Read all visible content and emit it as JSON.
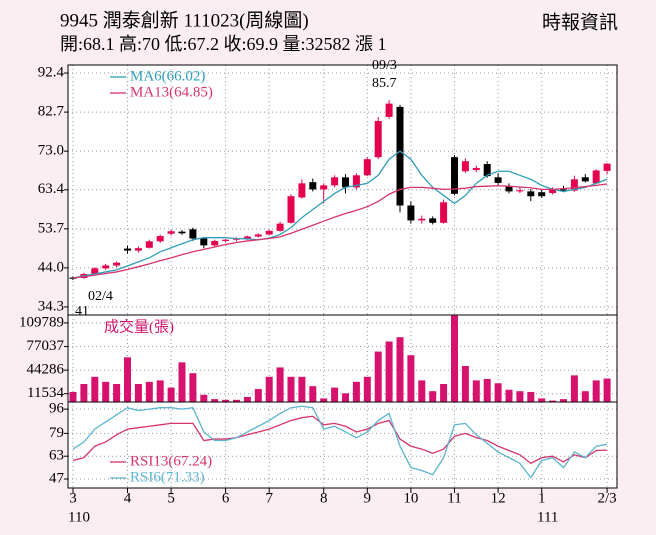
{
  "chart_data": [
    {
      "type": "candlestick",
      "title": "9945  潤泰創新 111023(周線圖)",
      "subtitle": "開:68.1 高:70 低:67.2 收:69.9 量:32582 漲 1",
      "source": "時報資訊",
      "up_color": "#e5004f",
      "down_color": "#000000",
      "open": [
        41.6,
        41.5,
        42.5,
        43.9,
        44.6,
        48.8,
        48.3,
        49,
        50.6,
        52.5,
        53,
        53.6,
        51.3,
        49.6,
        50.7,
        51,
        51.3,
        51.8,
        52.3,
        53.2,
        55.2,
        61.5,
        65.3,
        63.5,
        64.5,
        66.5,
        64,
        67,
        71.5,
        81.5,
        84,
        59.5,
        55.8,
        56.3,
        55.2,
        71.5,
        68,
        68.3,
        69.8,
        66.5,
        64.2,
        63,
        63,
        62.8,
        62.6,
        63.5,
        63.2,
        66.5,
        65,
        68.1
      ],
      "high": [
        41.9,
        42.8,
        44.2,
        45,
        45.6,
        49.5,
        49.3,
        51,
        52.3,
        53.5,
        53.4,
        54,
        51.5,
        51,
        51.2,
        51.6,
        52,
        52.6,
        53.5,
        55.5,
        62.3,
        66,
        66.2,
        65,
        67,
        67.3,
        67.5,
        71.5,
        81.5,
        85.7,
        84.5,
        60.5,
        57,
        56.8,
        61,
        72,
        71.2,
        69.4,
        70.5,
        67.5,
        65,
        64,
        63.6,
        63.5,
        64,
        64.4,
        66.9,
        67.3,
        68.5,
        70
      ],
      "low": [
        41,
        41.3,
        42.2,
        43.5,
        44.2,
        47.5,
        47.8,
        48.8,
        50.2,
        52,
        52.2,
        50.7,
        48.9,
        49.3,
        50.3,
        50.6,
        51,
        51.5,
        52,
        53,
        55,
        61.2,
        63,
        60,
        64,
        62.5,
        63.5,
        66.8,
        71,
        81,
        57.8,
        55,
        55,
        54.8,
        55,
        62,
        67.6,
        67.8,
        66.4,
        64.6,
        62.5,
        62.6,
        60.6,
        61.4,
        62.2,
        62.8,
        62.9,
        65.2,
        64.8,
        67.2
      ],
      "close": [
        41.3,
        42.5,
        43.9,
        44.6,
        45.3,
        48.3,
        48.9,
        50.6,
        51.9,
        53.1,
        52.6,
        51.3,
        49.6,
        50.7,
        51,
        51.3,
        51.8,
        52.3,
        53.2,
        55,
        61.8,
        65,
        63.5,
        64.5,
        66.5,
        64,
        67,
        71,
        80.5,
        84.8,
        59.5,
        55.8,
        56.2,
        55.2,
        60.3,
        62.4,
        70.5,
        68.8,
        66.8,
        65.1,
        63,
        63.3,
        61.8,
        61.8,
        63.6,
        63.2,
        66,
        65.5,
        68.2,
        69.9
      ],
      "series": [
        {
          "name": "MA6(66.02)",
          "color": "#2e9fb8",
          "values": [
            41.5,
            42,
            42.5,
            43,
            43.5,
            44.5,
            45.5,
            46.5,
            48,
            49,
            50,
            51,
            51.5,
            51.5,
            51.5,
            51.3,
            51.2,
            51,
            51.4,
            52.3,
            54,
            56.5,
            58.5,
            60.5,
            62.5,
            64,
            64.5,
            65,
            67,
            71,
            73,
            71,
            67,
            64,
            62,
            60,
            62,
            65,
            67,
            68,
            68,
            67,
            66,
            64.5,
            63.5,
            63,
            63.5,
            64,
            65,
            66.02
          ]
        },
        {
          "name": "MA13(64.85)",
          "color": "#d6336c",
          "values": [
            41.5,
            41.8,
            42.2,
            42.6,
            43,
            43.6,
            44.3,
            45,
            45.8,
            46.5,
            47.3,
            48,
            48.6,
            49.2,
            49.8,
            50.3,
            50.7,
            51,
            51.3,
            51.7,
            52.6,
            53.6,
            54.6,
            55.6,
            56.6,
            57.5,
            58.3,
            59.2,
            60.5,
            62.3,
            63.5,
            64,
            64,
            63.8,
            63.5,
            63.6,
            63.8,
            64.2,
            64.3,
            64.4,
            64.3,
            64.1,
            63.9,
            63.5,
            63.5,
            63.7,
            63.9,
            64.2,
            64.5,
            64.85
          ]
        }
      ],
      "annotations": [
        "02/4",
        "41",
        "09/3",
        "85.7"
      ],
      "ylim": [
        32.3,
        94.4
      ],
      "yticks": [
        92.4,
        82.7,
        {
          "value": 73,
          "label": "73.0"
        },
        63.4,
        53.7,
        {
          "value": 44,
          "label": "44.0"
        },
        34.3
      ],
      "grid": true
    },
    {
      "type": "bar",
      "title": "成交量(張)",
      "color": "#d6126e",
      "values": [
        14000,
        25000,
        35000,
        28000,
        25000,
        62000,
        25000,
        28000,
        30000,
        20000,
        55000,
        40000,
        10000,
        4000,
        3000,
        3000,
        7000,
        18000,
        35000,
        48000,
        35000,
        35000,
        22000,
        5000,
        20000,
        12000,
        28000,
        35000,
        70000,
        84000,
        90000,
        65000,
        30000,
        15000,
        25000,
        120000,
        50000,
        30000,
        32000,
        26000,
        17000,
        15000,
        14000,
        5000,
        2000,
        4000,
        37000,
        15000,
        30000,
        32582
      ],
      "ylim": [
        0,
        120800
      ],
      "yticks": [
        109789,
        77037,
        44286,
        11534
      ],
      "grid": true
    },
    {
      "type": "line",
      "categories": [
        "3",
        null,
        null,
        null,
        null,
        "4",
        null,
        null,
        null,
        "5",
        null,
        null,
        null,
        null,
        "6",
        null,
        null,
        null,
        "7",
        null,
        null,
        null,
        null,
        "8",
        null,
        null,
        null,
        "9",
        null,
        null,
        null,
        "10",
        null,
        null,
        null,
        "11",
        null,
        null,
        null,
        "12",
        null,
        null,
        null,
        "1",
        null,
        null,
        null,
        null,
        null,
        "2/3"
      ],
      "sub_categories": [
        "110",
        null,
        null,
        null,
        null,
        null,
        null,
        null,
        null,
        null,
        null,
        null,
        null,
        null,
        null,
        null,
        null,
        null,
        null,
        null,
        null,
        null,
        null,
        null,
        null,
        null,
        null,
        null,
        null,
        null,
        null,
        null,
        null,
        null,
        null,
        null,
        null,
        null,
        null,
        null,
        null,
        null,
        null,
        "111",
        null,
        null,
        null,
        null,
        null,
        null
      ],
      "series": [
        {
          "name": "RSI13(67.24)",
          "color": "#d6336c",
          "values": [
            60,
            62,
            70,
            73,
            78,
            82,
            83,
            84,
            85,
            86,
            86,
            86,
            74,
            75,
            75,
            76,
            78,
            80,
            82,
            85,
            88,
            90,
            91,
            85,
            86,
            84,
            80,
            82,
            86,
            88,
            75,
            70,
            68,
            65,
            68,
            77,
            79,
            76,
            74,
            70,
            67,
            64,
            58,
            62,
            63,
            59,
            64,
            62,
            67,
            67.24
          ]
        },
        {
          "name": "RSI6(71.33)",
          "color": "#5bb4d0",
          "values": [
            68,
            73,
            82,
            87,
            92,
            97,
            95,
            96,
            97,
            97,
            96,
            97,
            80,
            74,
            74,
            76,
            80,
            84,
            88,
            93,
            97,
            98,
            97,
            82,
            84,
            80,
            76,
            80,
            88,
            93,
            70,
            55,
            53,
            50,
            62,
            85,
            86,
            78,
            72,
            66,
            62,
            58,
            48,
            60,
            62,
            55,
            66,
            62,
            70,
            71.33
          ]
        }
      ],
      "ylim": [
        40.7,
        101
      ],
      "yticks": [
        96,
        79,
        63,
        47
      ],
      "grid": true
    }
  ]
}
